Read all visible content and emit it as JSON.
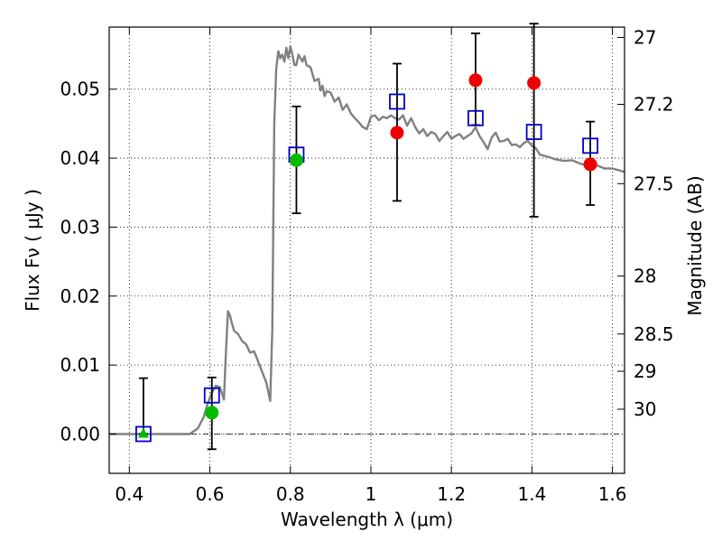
{
  "chart_data": {
    "type": "scatter",
    "xlabel": "Wavelength  λ (μm)",
    "ylabel": "Flux  Fν  ( μJy )",
    "y2label": "Magnitude (AB)",
    "xlim": [
      0.35,
      1.63
    ],
    "ylim": [
      -0.0057,
      0.059
    ],
    "xticks": [
      0.4,
      0.6,
      0.8,
      1.0,
      1.2,
      1.4,
      1.6
    ],
    "xtick_labels": [
      "0.4",
      "0.6",
      "0.8",
      "1",
      "1.2",
      "1.4",
      "1.6"
    ],
    "yticks": [
      0.0,
      0.01,
      0.02,
      0.03,
      0.04,
      0.05
    ],
    "ytick_labels": [
      "0.00",
      "0.01",
      "0.02",
      "0.03",
      "0.04",
      "0.05"
    ],
    "mag_ticks": [
      {
        "label": "27",
        "flux": 0.0575
      },
      {
        "label": "27.2",
        "flux": 0.0478
      },
      {
        "label": "27.5",
        "flux": 0.0363
      },
      {
        "label": "28",
        "flux": 0.0229
      },
      {
        "label": "28.5",
        "flux": 0.0145
      },
      {
        "label": "29",
        "flux": 0.0091
      },
      {
        "label": "30",
        "flux": 0.0036
      }
    ],
    "grid": true,
    "zero_line": 0.0,
    "sed_model": {
      "color": "#808080",
      "x": [
        0.35,
        0.55,
        0.57,
        0.585,
        0.595,
        0.605,
        0.615,
        0.625,
        0.635,
        0.64,
        0.645,
        0.65,
        0.655,
        0.66,
        0.67,
        0.68,
        0.69,
        0.7,
        0.71,
        0.72,
        0.73,
        0.74,
        0.75,
        0.755,
        0.76,
        0.765,
        0.77,
        0.775,
        0.78,
        0.785,
        0.79,
        0.795,
        0.8,
        0.805,
        0.81,
        0.815,
        0.82,
        0.825,
        0.83,
        0.835,
        0.84,
        0.85,
        0.86,
        0.87,
        0.875,
        0.88,
        0.885,
        0.89,
        0.9,
        0.91,
        0.92,
        0.93,
        0.94,
        0.95,
        0.96,
        0.97,
        0.98,
        0.99,
        1.0,
        1.01,
        1.02,
        1.03,
        1.04,
        1.05,
        1.06,
        1.07,
        1.08,
        1.09,
        1.1,
        1.11,
        1.12,
        1.13,
        1.14,
        1.15,
        1.16,
        1.17,
        1.18,
        1.19,
        1.2,
        1.21,
        1.22,
        1.23,
        1.24,
        1.25,
        1.26,
        1.27,
        1.28,
        1.29,
        1.3,
        1.31,
        1.32,
        1.33,
        1.34,
        1.35,
        1.36,
        1.37,
        1.38,
        1.39,
        1.4,
        1.41,
        1.42,
        1.44,
        1.46,
        1.48,
        1.5,
        1.52,
        1.54,
        1.56,
        1.58,
        1.6,
        1.63
      ],
      "y": [
        0.0,
        0.0,
        0.0008,
        0.0025,
        0.0045,
        0.006,
        0.007,
        0.0068,
        0.005,
        0.012,
        0.0178,
        0.0172,
        0.016,
        0.015,
        0.0145,
        0.0135,
        0.013,
        0.0118,
        0.012,
        0.0105,
        0.009,
        0.0075,
        0.0048,
        0.015,
        0.045,
        0.053,
        0.0555,
        0.0545,
        0.055,
        0.054,
        0.056,
        0.0545,
        0.0562,
        0.055,
        0.0535,
        0.0535,
        0.055,
        0.0545,
        0.054,
        0.0548,
        0.0535,
        0.0532,
        0.0512,
        0.0515,
        0.0498,
        0.0505,
        0.049,
        0.0497,
        0.0495,
        0.0482,
        0.0488,
        0.047,
        0.0478,
        0.0465,
        0.0458,
        0.0452,
        0.0445,
        0.0442,
        0.046,
        0.0462,
        0.0455,
        0.046,
        0.0458,
        0.0462,
        0.0458,
        0.0456,
        0.0462,
        0.0447,
        0.0458,
        0.0445,
        0.0436,
        0.0442,
        0.0432,
        0.0438,
        0.0435,
        0.0425,
        0.0432,
        0.0438,
        0.0428,
        0.0432,
        0.0435,
        0.0428,
        0.0432,
        0.0436,
        0.0445,
        0.0432,
        0.0423,
        0.0413,
        0.043,
        0.0437,
        0.0424,
        0.0425,
        0.0428,
        0.0419,
        0.042,
        0.0416,
        0.0422,
        0.0425,
        0.0418,
        0.0414,
        0.0405,
        0.0402,
        0.0398,
        0.0396,
        0.0397,
        0.0392,
        0.0389,
        0.039,
        0.0385,
        0.0385,
        0.038
      ]
    },
    "series": [
      {
        "marker": "square-open",
        "color": "#0000cc",
        "x": [
          0.435,
          0.605,
          0.815,
          1.065,
          1.26,
          1.405,
          1.545
        ],
        "y": [
          0.0,
          0.0056,
          0.0405,
          0.0482,
          0.0458,
          0.0438,
          0.0418
        ]
      },
      {
        "marker": "circle",
        "color": "#ee0000",
        "x": [
          1.065,
          1.26,
          1.405,
          1.545
        ],
        "y": [
          0.0437,
          0.0513,
          0.0509,
          0.0391
        ]
      },
      {
        "marker": "circle",
        "color": "#00bb00",
        "x": [
          0.605,
          0.815
        ],
        "y": [
          0.0031,
          0.0397
        ]
      },
      {
        "marker": "triangle",
        "color": "#00bb00",
        "x": [
          0.435
        ],
        "y": [
          0.0
        ]
      }
    ],
    "error_bars": [
      {
        "x": 0.435,
        "low": 0.0,
        "high": 0.0081
      },
      {
        "x": 0.605,
        "low": -0.0022,
        "high": 0.0082
      },
      {
        "x": 0.815,
        "low": 0.032,
        "high": 0.0475
      },
      {
        "x": 1.065,
        "low": 0.0338,
        "high": 0.0537
      },
      {
        "x": 1.26,
        "low": 0.0448,
        "high": 0.0581
      },
      {
        "x": 1.405,
        "low": 0.0315,
        "high": 0.0595
      },
      {
        "x": 1.545,
        "low": 0.0332,
        "high": 0.0453
      }
    ]
  }
}
